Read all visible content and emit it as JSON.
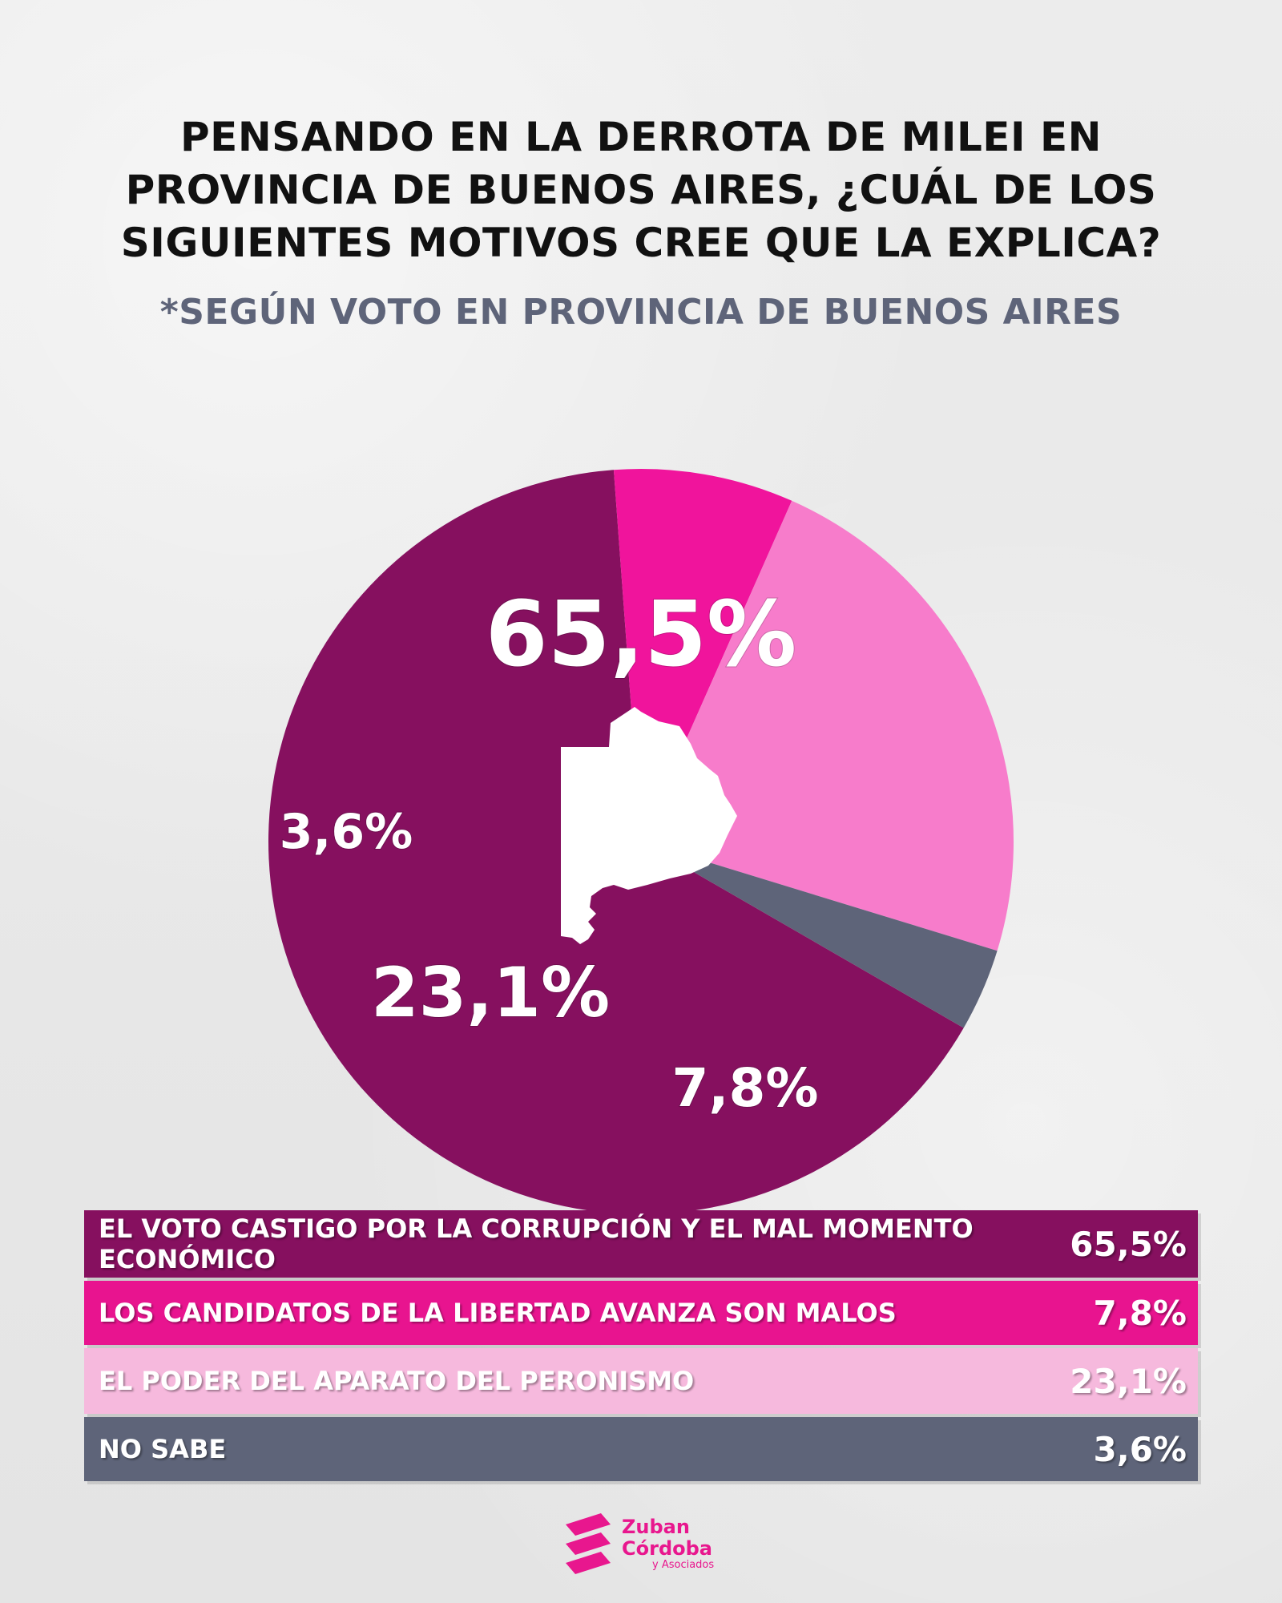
{
  "title_lines": [
    "PENSANDO EN LA DERROTA DE MILEI EN",
    "PROVINCIA DE BUENOS AIRES, ¿CUÁL DE LOS",
    "SIGUIENTES MOTIVOS CREE QUE LA EXPLICA?"
  ],
  "subtitle": "*SEGÚN VOTO EN PROVINCIA DE BUENOS AIRES",
  "chart_data": {
    "type": "pie",
    "title": "PENSANDO EN LA DERROTA DE MILEI EN PROVINCIA DE BUENOS AIRES, ¿CUÁL DE LOS SIGUIENTES MOTIVOS CREE QUE LA EXPLICA?",
    "subtitle": "*SEGÚN VOTO EN PROVINCIA DE BUENOS AIRES",
    "slices": [
      {
        "label": "EL VOTO CASTIGO POR LA CORRUPCIÓN Y EL MAL MOMENTO ECONÓMICO",
        "value": 65.5,
        "display": "65,5%",
        "color": "#86105f"
      },
      {
        "label": "LOS CANDIDATOS DE LA LIBERTAD AVANZA SON MALOS",
        "value": 7.8,
        "display": "7,8%",
        "color": "#f0149c"
      },
      {
        "label": "EL PODER DEL APARATO DEL PERONISMO",
        "value": 23.1,
        "display": "23,1%",
        "color": "#f77ccb"
      },
      {
        "label": "NO SABE",
        "value": 3.6,
        "display": "3,6%",
        "color": "#5e6479"
      }
    ],
    "legend_position": "bottom"
  },
  "legend": [
    {
      "label": "EL VOTO CASTIGO POR LA CORRUPCIÓN Y EL MAL MOMENTO ECONÓMICO",
      "value": "65,5%",
      "color": "#86105f"
    },
    {
      "label": "LOS CANDIDATOS DE LA LIBERTAD AVANZA SON MALOS",
      "value": "7,8%",
      "color": "#e8148f"
    },
    {
      "label": "EL PODER DEL APARATO DEL PERONISMO",
      "value": "23,1%",
      "color": "#f6b9dd"
    },
    {
      "label": "NO SABE",
      "value": "3,6%",
      "color": "#5e6479"
    }
  ],
  "logo": {
    "line1": "Zuban",
    "line2": "Córdoba",
    "line3": "y Asociados",
    "icon": "zc-logo-icon",
    "color": "#e8178e"
  },
  "map_icon": "buenos-aires-province-silhouette-icon"
}
